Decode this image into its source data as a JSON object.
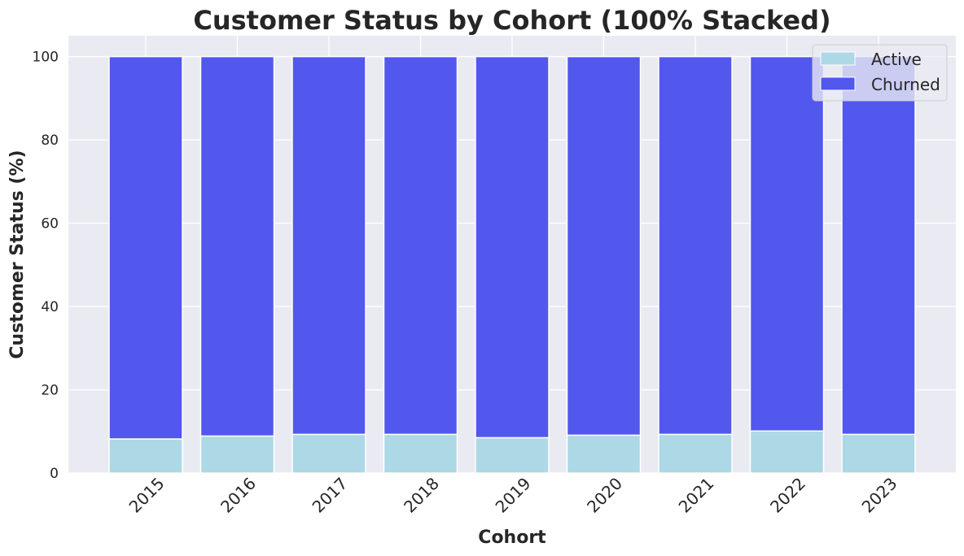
{
  "chart_data": {
    "type": "bar",
    "stacked": true,
    "title": "Customer Status by Cohort (100% Stacked)",
    "xlabel": "Cohort",
    "ylabel": "Customer Status (%)",
    "categories": [
      "2015",
      "2016",
      "2017",
      "2018",
      "2019",
      "2020",
      "2021",
      "2022",
      "2023"
    ],
    "series": [
      {
        "name": "Active",
        "color": "#add8e6",
        "values": [
          8.2,
          8.9,
          9.3,
          9.3,
          8.5,
          9.1,
          9.3,
          10.1,
          9.3
        ]
      },
      {
        "name": "Churned",
        "color": "#5257ed",
        "values": [
          91.8,
          91.1,
          90.7,
          90.7,
          91.5,
          90.9,
          90.7,
          89.9,
          90.7
        ]
      }
    ],
    "ylim": [
      0,
      105
    ],
    "yticks": [
      0,
      20,
      40,
      60,
      80,
      100
    ],
    "grid": true,
    "legend_position": "top-right",
    "background": "#eaeaf2"
  }
}
